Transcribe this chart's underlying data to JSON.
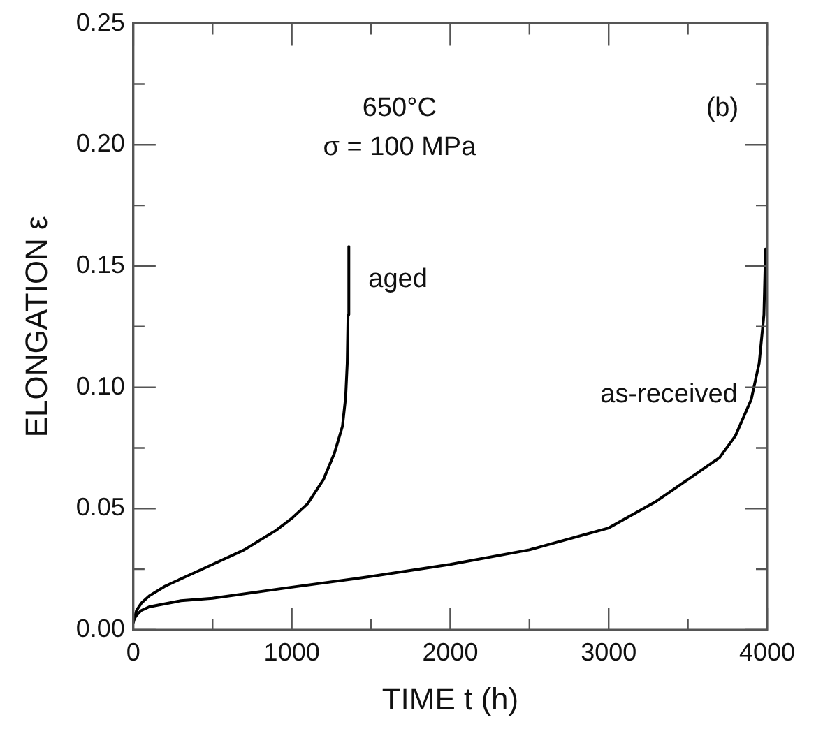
{
  "chart_data": {
    "type": "line",
    "xlabel": "TIME t (h)",
    "ylabel": "ELONGATION ε",
    "annotations": [
      "650°C",
      "σ = 100 MPa",
      "(b)"
    ],
    "xlim": [
      0,
      4000
    ],
    "ylim": [
      0,
      0.25
    ],
    "xticks": [
      0,
      {
        "value": 500,
        "label": null
      },
      1000,
      {
        "value": 1500,
        "label": null
      },
      2000,
      {
        "value": 2500,
        "label": null
      },
      3000,
      {
        "value": 3500,
        "label": null
      },
      4000
    ],
    "yticks": [
      {
        "value": 0,
        "label": "0.00"
      },
      {
        "value": 0.025,
        "label": null
      },
      {
        "value": 0.05,
        "label": "0.05"
      },
      {
        "value": 0.075,
        "label": null
      },
      {
        "value": 0.1,
        "label": "0.10"
      },
      {
        "value": 0.125,
        "label": null
      },
      {
        "value": 0.15,
        "label": "0.15"
      },
      {
        "value": 0.175,
        "label": null
      },
      {
        "value": 0.2,
        "label": "0.20"
      },
      {
        "value": 0.225,
        "label": null
      },
      {
        "value": 0.25,
        "label": "0.25"
      }
    ],
    "grid": false,
    "legend": false,
    "marker": "none",
    "line_style": "solid",
    "series": [
      {
        "name": "aged",
        "color": "#000000",
        "x": [
          0,
          20,
          50,
          100,
          200,
          300,
          500,
          700,
          900,
          1000,
          1100,
          1200,
          1270,
          1320,
          1340,
          1350,
          1355,
          1360
        ],
        "values": [
          0.003,
          0.008,
          0.011,
          0.014,
          0.018,
          0.021,
          0.027,
          0.033,
          0.041,
          0.046,
          0.052,
          0.062,
          0.073,
          0.084,
          0.096,
          0.11,
          0.13,
          0.158
        ]
      },
      {
        "name": "as-received",
        "color": "#000000",
        "x": [
          0,
          20,
          50,
          100,
          300,
          500,
          1000,
          1500,
          2000,
          2500,
          3000,
          3300,
          3500,
          3700,
          3800,
          3900,
          3950,
          3980,
          3990
        ],
        "values": [
          0.004,
          0.006,
          0.008,
          0.0095,
          0.012,
          0.013,
          0.0176,
          0.022,
          0.027,
          0.033,
          0.042,
          0.053,
          0.062,
          0.071,
          0.08,
          0.095,
          0.11,
          0.13,
          0.157
        ]
      }
    ]
  }
}
